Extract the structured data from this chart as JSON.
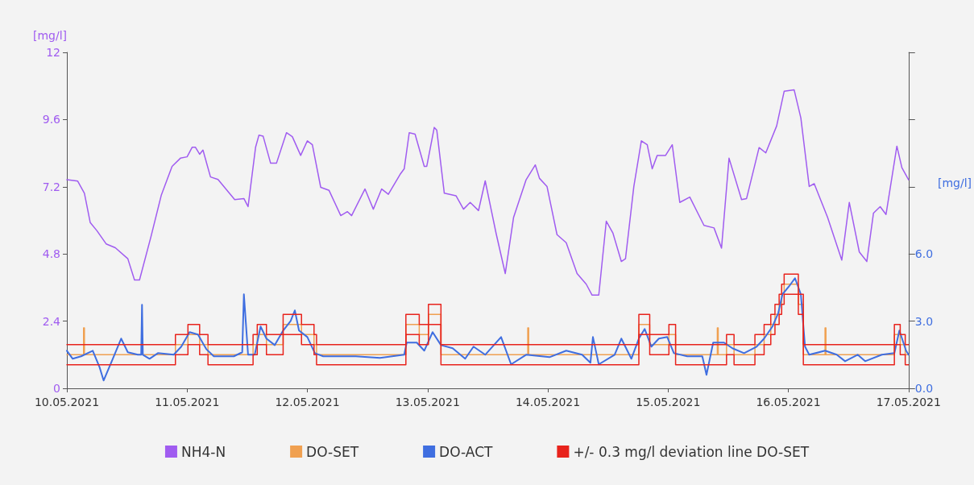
{
  "chart_data": {
    "type": "line",
    "ylabel": "[mg/l]",
    "y2label": "[mg/l]",
    "xlim": [
      "2021-05-10",
      "2021-05-17"
    ],
    "xticks": [
      {
        "value": "2021-05-10",
        "label": "10.05.2021"
      },
      {
        "value": "2021-05-11",
        "label": "11.05.2021"
      },
      {
        "value": "2021-05-12",
        "label": "12.05.2021"
      },
      {
        "value": "2021-05-13",
        "label": "13.05.2021"
      },
      {
        "value": "2021-05-14",
        "label": "14.05.2021"
      },
      {
        "value": "2021-05-15",
        "label": "15.05.2021"
      },
      {
        "value": "2021-05-16",
        "label": "16.05.2021"
      },
      {
        "value": "2021-05-17",
        "label": "17.05.2021"
      }
    ],
    "ylim": [
      0,
      12
    ],
    "yticks": [
      0,
      2.4,
      4.8,
      7.2,
      9.6,
      12
    ],
    "y2lim": [
      0,
      15
    ],
    "y2ticks": [
      {
        "value": 0,
        "label": "0.0"
      },
      {
        "value": 3,
        "label": "3.0"
      },
      {
        "value": 6,
        "label": "6.0"
      },
      {
        "value": 9,
        "label": null
      },
      {
        "value": 12,
        "label": null
      },
      {
        "value": 15,
        "label": null
      }
    ],
    "grid": false,
    "legend": "bottom",
    "marker": "none",
    "series": [
      {
        "name": "NH4-N",
        "color": "#a05cf0",
        "x": [
          "2021-05-10T00:00",
          "2021-05-10T02:10",
          "2021-05-10T03:30",
          "2021-05-10T04:40",
          "2021-05-10T06:00",
          "2021-05-10T07:50",
          "2021-05-10T09:40",
          "2021-05-10T12:10",
          "2021-05-10T13:30",
          "2021-05-10T14:30",
          "2021-05-10T16:50",
          "2021-05-10T18:50",
          "2021-05-10T21:00",
          "2021-05-10T22:40",
          "2021-05-11T00:00",
          "2021-05-11T01:00",
          "2021-05-11T01:40",
          "2021-05-11T02:30",
          "2021-05-11T03:10",
          "2021-05-11T04:40",
          "2021-05-11T06:10",
          "2021-05-11T09:30",
          "2021-05-11T11:20",
          "2021-05-11T12:10",
          "2021-05-11T13:40",
          "2021-05-11T14:20",
          "2021-05-11T15:10",
          "2021-05-11T16:40",
          "2021-05-11T17:50",
          "2021-05-11T19:50",
          "2021-05-11T21:00",
          "2021-05-11T22:40",
          "2021-05-12T00:00",
          "2021-05-12T01:00",
          "2021-05-12T02:40",
          "2021-05-12T04:20",
          "2021-05-12T06:40",
          "2021-05-12T08:00",
          "2021-05-12T08:50",
          "2021-05-12T11:30",
          "2021-05-12T13:10",
          "2021-05-12T14:50",
          "2021-05-12T16:10",
          "2021-05-12T18:30",
          "2021-05-12T19:20",
          "2021-05-12T20:20",
          "2021-05-12T21:30",
          "2021-05-12T23:20",
          "2021-05-12T23:50",
          "2021-05-13T01:20",
          "2021-05-13T01:50",
          "2021-05-13T03:20",
          "2021-05-13T05:40",
          "2021-05-13T07:10",
          "2021-05-13T08:30",
          "2021-05-13T10:10",
          "2021-05-13T11:30",
          "2021-05-13T13:40",
          "2021-05-13T15:30",
          "2021-05-13T17:10",
          "2021-05-13T19:40",
          "2021-05-13T21:30",
          "2021-05-13T22:20",
          "2021-05-13T23:50",
          "2021-05-14T01:50",
          "2021-05-14T03:40",
          "2021-05-14T05:50",
          "2021-05-14T07:40",
          "2021-05-14T08:50",
          "2021-05-14T10:10",
          "2021-05-14T11:40",
          "2021-05-14T13:00",
          "2021-05-14T14:40",
          "2021-05-14T15:30",
          "2021-05-14T17:10",
          "2021-05-14T18:40",
          "2021-05-14T19:50",
          "2021-05-14T20:50",
          "2021-05-14T21:50",
          "2021-05-14T23:30",
          "2021-05-15T00:50",
          "2021-05-15T02:20",
          "2021-05-15T04:20",
          "2021-05-15T07:10",
          "2021-05-15T09:10",
          "2021-05-15T10:40",
          "2021-05-15T12:10",
          "2021-05-15T14:40",
          "2021-05-15T15:40",
          "2021-05-15T18:10",
          "2021-05-15T19:30",
          "2021-05-15T21:40",
          "2021-05-15T23:10",
          "2021-05-16T01:10",
          "2021-05-16T02:30",
          "2021-05-16T04:10",
          "2021-05-16T05:10",
          "2021-05-16T07:50",
          "2021-05-16T10:40",
          "2021-05-16T12:10",
          "2021-05-16T14:10",
          "2021-05-16T15:40",
          "2021-05-16T17:00",
          "2021-05-16T18:20",
          "2021-05-16T19:30",
          "2021-05-16T21:40",
          "2021-05-16T22:40",
          "2021-05-17T00:00"
        ],
        "values": [
          7.45,
          7.4,
          6.97,
          5.92,
          5.63,
          5.16,
          5.02,
          4.63,
          3.87,
          3.87,
          5.45,
          6.89,
          7.93,
          8.22,
          8.27,
          8.61,
          8.61,
          8.36,
          8.51,
          7.55,
          7.46,
          6.74,
          6.78,
          6.49,
          8.61,
          9.04,
          9.01,
          8.04,
          8.04,
          9.13,
          8.99,
          8.32,
          8.84,
          8.7,
          7.18,
          7.07,
          6.17,
          6.31,
          6.17,
          7.12,
          6.4,
          7.12,
          6.93,
          7.64,
          7.84,
          9.13,
          9.08,
          7.93,
          7.93,
          9.32,
          9.22,
          6.97,
          6.88,
          6.4,
          6.64,
          6.35,
          7.41,
          5.54,
          4.1,
          6.11,
          7.45,
          7.98,
          7.5,
          7.21,
          5.49,
          5.2,
          4.1,
          3.72,
          3.33,
          3.33,
          5.97,
          5.54,
          4.53,
          4.63,
          7.21,
          8.84,
          8.7,
          7.84,
          8.32,
          8.32,
          8.7,
          6.64,
          6.83,
          5.82,
          5.73,
          5.01,
          8.22,
          6.74,
          6.78,
          8.6,
          8.41,
          9.37,
          10.61,
          10.66,
          9.66,
          7.21,
          7.31,
          6.11,
          4.58,
          6.64,
          4.87,
          4.53,
          6.26,
          6.49,
          6.21,
          8.65,
          7.88,
          7.45
        ]
      },
      {
        "name": "DO-SET",
        "color": "#f0a050",
        "type": "step",
        "axis": "y2",
        "x": [
          "2021-05-10T00:00",
          "2021-05-10T03:20",
          "2021-05-10T03:30",
          "2021-05-10T21:40",
          "2021-05-11T00:10",
          "2021-05-11T02:30",
          "2021-05-11T04:10",
          "2021-05-11T13:10",
          "2021-05-11T14:00",
          "2021-05-11T15:50",
          "2021-05-11T19:10",
          "2021-05-11T22:50",
          "2021-05-12T01:20",
          "2021-05-12T01:50",
          "2021-05-12T19:40",
          "2021-05-12T22:20",
          "2021-05-13T00:10",
          "2021-05-13T02:40",
          "2021-05-13T20:00",
          "2021-05-13T20:10",
          "2021-05-14T18:10",
          "2021-05-14T20:20",
          "2021-05-15T00:10",
          "2021-05-15T01:30",
          "2021-05-15T09:50",
          "2021-05-15T10:00",
          "2021-05-15T11:40",
          "2021-05-15T13:10",
          "2021-05-15T17:20",
          "2021-05-15T19:10",
          "2021-05-15T20:30",
          "2021-05-15T21:20",
          "2021-05-15T22:10",
          "2021-05-15T22:40",
          "2021-05-15T23:10",
          "2021-05-16T02:00",
          "2021-05-16T03:00",
          "2021-05-16T07:20",
          "2021-05-16T07:30",
          "2021-05-16T21:10",
          "2021-05-16T22:20",
          "2021-05-16T23:20",
          "2021-05-17T00:00"
        ],
        "values": [
          1.5,
          2.7,
          1.5,
          1.95,
          2.4,
          1.95,
          1.5,
          1.95,
          2.4,
          1.95,
          2.85,
          2.4,
          1.95,
          1.5,
          2.85,
          2.4,
          3.3,
          1.5,
          2.7,
          1.5,
          2.85,
          1.95,
          2.4,
          1.5,
          2.7,
          1.5,
          1.95,
          1.5,
          1.95,
          2.4,
          2.85,
          3.3,
          3.75,
          4.2,
          4.65,
          3.75,
          1.5,
          2.7,
          1.5,
          2.4,
          1.95,
          1.5,
          1.5
        ]
      },
      {
        "name": "DO-ACT",
        "color": "#3f6ee0",
        "axis": "y2",
        "x": [
          "2021-05-10T00:00",
          "2021-05-10T01:10",
          "2021-05-10T02:50",
          "2021-05-10T05:10",
          "2021-05-10T06:30",
          "2021-05-10T07:20",
          "2021-05-10T09:10",
          "2021-05-10T10:50",
          "2021-05-10T12:10",
          "2021-05-10T14:10",
          "2021-05-10T14:50",
          "2021-05-10T15:00",
          "2021-05-10T15:10",
          "2021-05-10T16:30",
          "2021-05-10T18:10",
          "2021-05-10T21:20",
          "2021-05-10T22:50",
          "2021-05-11T00:30",
          "2021-05-11T02:10",
          "2021-05-11T03:50",
          "2021-05-11T05:20",
          "2021-05-11T09:20",
          "2021-05-11T11:00",
          "2021-05-11T11:20",
          "2021-05-11T12:10",
          "2021-05-11T13:30",
          "2021-05-11T14:40",
          "2021-05-11T15:50",
          "2021-05-11T17:30",
          "2021-05-11T19:10",
          "2021-05-11T20:40",
          "2021-05-11T21:30",
          "2021-05-11T22:20",
          "2021-05-12T00:00",
          "2021-05-12T01:30",
          "2021-05-12T03:10",
          "2021-05-12T09:40",
          "2021-05-12T14:30",
          "2021-05-12T19:20",
          "2021-05-12T19:50",
          "2021-05-12T21:50",
          "2021-05-12T23:20",
          "2021-05-13T01:00",
          "2021-05-13T02:40",
          "2021-05-13T05:00",
          "2021-05-13T07:30",
          "2021-05-13T09:10",
          "2021-05-13T11:30",
          "2021-05-13T14:40",
          "2021-05-13T16:40",
          "2021-05-13T19:40",
          "2021-05-14T00:20",
          "2021-05-14T03:40",
          "2021-05-14T06:50",
          "2021-05-14T08:30",
          "2021-05-14T09:00",
          "2021-05-14T10:10",
          "2021-05-14T13:20",
          "2021-05-14T14:40",
          "2021-05-14T16:40",
          "2021-05-14T18:10",
          "2021-05-14T19:20",
          "2021-05-14T20:40",
          "2021-05-14T22:10",
          "2021-05-14T23:50",
          "2021-05-15T01:10",
          "2021-05-15T03:50",
          "2021-05-15T06:50",
          "2021-05-15T07:40",
          "2021-05-15T09:00",
          "2021-05-15T11:10",
          "2021-05-15T12:50",
          "2021-05-15T15:10",
          "2021-05-15T17:40",
          "2021-05-15T19:10",
          "2021-05-15T20:50",
          "2021-05-15T22:00",
          "2021-05-15T22:50",
          "2021-05-16T00:10",
          "2021-05-16T01:20",
          "2021-05-16T02:30",
          "2021-05-16T03:20",
          "2021-05-16T04:10",
          "2021-05-16T07:20",
          "2021-05-16T09:40",
          "2021-05-16T11:20",
          "2021-05-16T13:50",
          "2021-05-16T15:20",
          "2021-05-16T18:40",
          "2021-05-16T21:10",
          "2021-05-16T22:10",
          "2021-05-16T23:30",
          "2021-05-17T00:00"
        ],
        "values": [
          1.68,
          1.32,
          1.43,
          1.68,
          0.96,
          0.35,
          1.32,
          2.22,
          1.61,
          1.5,
          1.5,
          3.73,
          1.5,
          1.32,
          1.57,
          1.5,
          1.86,
          2.51,
          2.4,
          1.75,
          1.43,
          1.43,
          1.61,
          4.2,
          1.5,
          1.5,
          2.76,
          2.22,
          1.93,
          2.58,
          3.01,
          3.48,
          2.58,
          2.29,
          1.57,
          1.43,
          1.43,
          1.36,
          1.5,
          2.04,
          2.04,
          1.68,
          2.51,
          1.93,
          1.79,
          1.32,
          1.86,
          1.5,
          2.29,
          1.07,
          1.5,
          1.39,
          1.68,
          1.5,
          1.14,
          2.29,
          1.07,
          1.5,
          2.22,
          1.32,
          2.22,
          2.65,
          1.86,
          2.22,
          2.29,
          1.57,
          1.43,
          1.43,
          0.6,
          2.04,
          2.04,
          1.79,
          1.57,
          1.86,
          2.22,
          2.76,
          3.37,
          4.2,
          4.56,
          4.92,
          4.2,
          1.86,
          1.5,
          1.68,
          1.5,
          1.21,
          1.5,
          1.21,
          1.5,
          1.57,
          2.58,
          1.68,
          1.5
        ]
      },
      {
        "name": "+/- 0.3 mg/l deviation line DO-SET",
        "color": "#e8231c",
        "type": "step",
        "axis": "y2",
        "x": [
          "2021-05-10T00:00",
          "2021-05-10T21:40",
          "2021-05-11T00:10",
          "2021-05-11T02:30",
          "2021-05-11T04:10",
          "2021-05-11T13:10",
          "2021-05-11T14:00",
          "2021-05-11T15:50",
          "2021-05-11T19:10",
          "2021-05-11T22:50",
          "2021-05-12T01:20",
          "2021-05-12T01:50",
          "2021-05-12T19:40",
          "2021-05-12T22:20",
          "2021-05-13T00:10",
          "2021-05-13T02:40",
          "2021-05-14T18:10",
          "2021-05-14T20:20",
          "2021-05-15T00:10",
          "2021-05-15T01:30",
          "2021-05-15T11:40",
          "2021-05-15T13:10",
          "2021-05-15T17:20",
          "2021-05-15T19:10",
          "2021-05-15T20:30",
          "2021-05-15T21:20",
          "2021-05-15T22:10",
          "2021-05-15T22:40",
          "2021-05-15T23:10",
          "2021-05-16T02:00",
          "2021-05-16T03:00",
          "2021-05-16T21:10",
          "2021-05-16T22:20",
          "2021-05-16T23:20",
          "2021-05-17T00:00"
        ],
        "values": [
          1.95,
          2.4,
          2.85,
          2.4,
          1.95,
          2.4,
          2.85,
          2.4,
          3.3,
          2.85,
          2.4,
          1.95,
          3.3,
          2.85,
          3.75,
          1.95,
          3.3,
          2.4,
          2.85,
          1.95,
          2.4,
          1.95,
          2.4,
          2.85,
          3.3,
          3.75,
          4.2,
          4.65,
          5.1,
          4.2,
          1.95,
          2.85,
          2.4,
          1.95,
          1.95
        ]
      },
      {
        "color": "#e8231c",
        "type": "step",
        "axis": "y2",
        "x": [
          "2021-05-10T00:00",
          "2021-05-10T21:40",
          "2021-05-11T00:10",
          "2021-05-11T02:30",
          "2021-05-11T04:10",
          "2021-05-11T13:10",
          "2021-05-11T14:00",
          "2021-05-11T15:50",
          "2021-05-11T19:10",
          "2021-05-11T22:50",
          "2021-05-12T01:20",
          "2021-05-12T01:50",
          "2021-05-12T19:40",
          "2021-05-12T22:20",
          "2021-05-13T00:10",
          "2021-05-13T02:40",
          "2021-05-14T18:10",
          "2021-05-14T20:20",
          "2021-05-15T00:10",
          "2021-05-15T01:30",
          "2021-05-15T11:40",
          "2021-05-15T13:10",
          "2021-05-15T17:20",
          "2021-05-15T19:10",
          "2021-05-15T20:30",
          "2021-05-15T21:20",
          "2021-05-15T22:10",
          "2021-05-15T22:40",
          "2021-05-15T23:10",
          "2021-05-16T02:00",
          "2021-05-16T03:00",
          "2021-05-16T21:10",
          "2021-05-16T22:20",
          "2021-05-16T23:20",
          "2021-05-17T00:00"
        ],
        "values": [
          1.05,
          1.5,
          1.95,
          1.5,
          1.05,
          1.5,
          1.95,
          1.5,
          2.4,
          1.95,
          1.5,
          1.05,
          2.4,
          1.95,
          2.85,
          1.05,
          2.4,
          1.5,
          1.95,
          1.05,
          1.5,
          1.05,
          1.5,
          1.95,
          2.4,
          2.85,
          3.3,
          3.75,
          4.2,
          3.3,
          1.05,
          1.95,
          1.5,
          1.05,
          1.05
        ]
      }
    ]
  }
}
